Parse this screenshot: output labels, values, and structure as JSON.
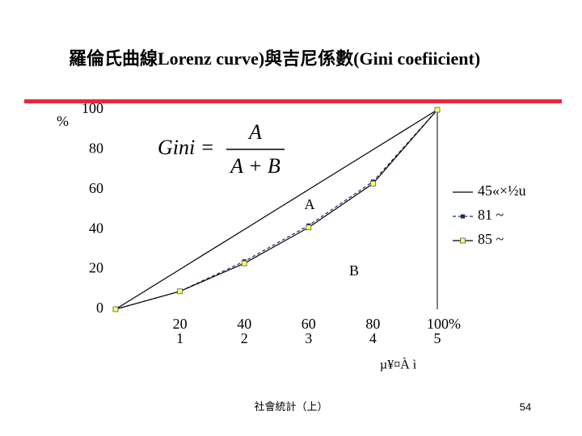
{
  "chart_data": {
    "type": "line",
    "title": "羅倫氏曲線Lorenz curve)與吉尼係數(Gini coefiicient)",
    "y_unit": "%",
    "x_axis_label": "µ¥¤À ì",
    "x": [
      0,
      20,
      40,
      60,
      80,
      100
    ],
    "series": [
      {
        "name": "45«×½u",
        "color": "#000000",
        "dash": false,
        "marker": "none",
        "values": [
          0,
          20,
          40,
          60,
          80,
          100
        ]
      },
      {
        "name": "81 ~",
        "color": "#1a2a6c",
        "dash": true,
        "marker": "star",
        "values": [
          0,
          9,
          24,
          42,
          64,
          100
        ]
      },
      {
        "name": "85 ~",
        "color": "#000000",
        "marker_color": "#ffff66",
        "dash": false,
        "marker": "square",
        "values": [
          0,
          9,
          23,
          41,
          63,
          100
        ]
      }
    ],
    "xlim": [
      0,
      100
    ],
    "ylim": [
      0,
      100
    ],
    "xticks": [
      20,
      40,
      60,
      80,
      {
        "value": 100,
        "label": "100%"
      }
    ],
    "x_index_labels": [
      "1",
      "2",
      "3",
      "4",
      "5"
    ],
    "yticks": [
      0,
      20,
      40,
      60,
      80,
      100
    ],
    "area_labels": [
      "A",
      "B"
    ],
    "formula": {
      "lhs": "Gini =",
      "numerator": "A",
      "denominator": "A + B"
    }
  },
  "footer": {
    "source": "社會統計（上）",
    "page": "54"
  }
}
